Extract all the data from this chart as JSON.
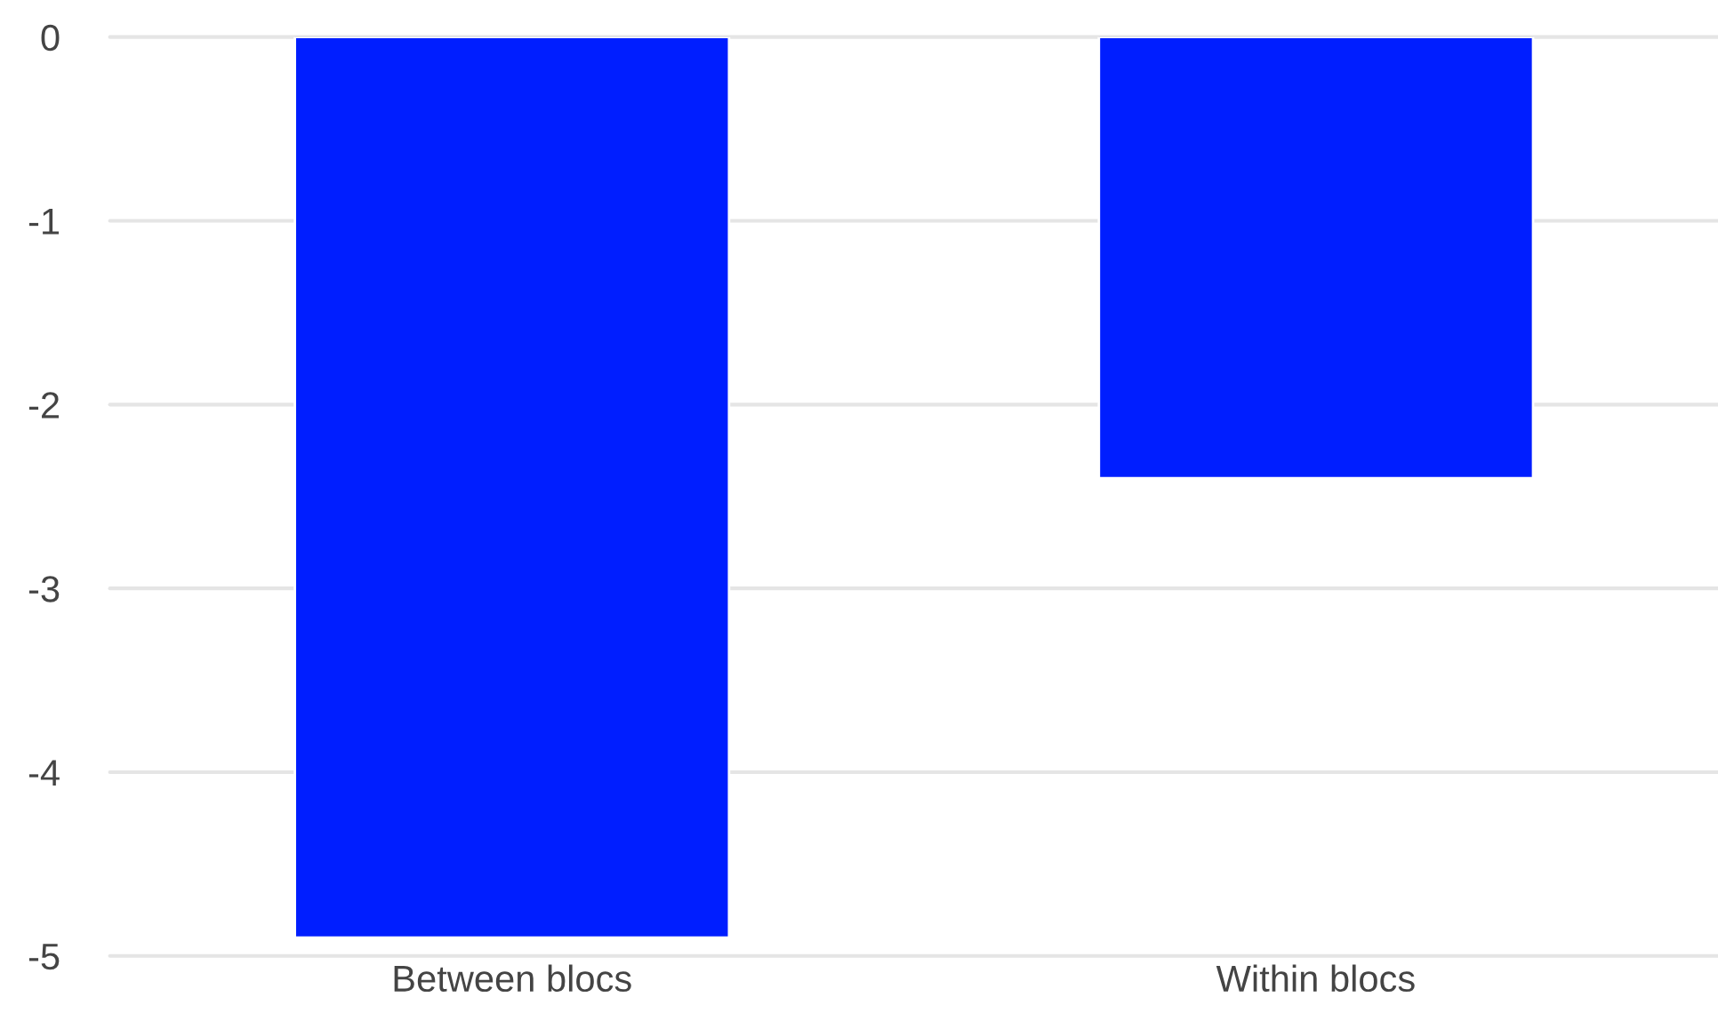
{
  "chart_data": {
    "type": "bar",
    "categories": [
      "Between blocs",
      "Within blocs"
    ],
    "values": [
      -4.9,
      -2.4
    ],
    "color": "#001eff",
    "ylim": [
      -5,
      0
    ],
    "yticks": [
      -5,
      -4,
      -3,
      -2,
      -1,
      0
    ],
    "grid": "y"
  }
}
